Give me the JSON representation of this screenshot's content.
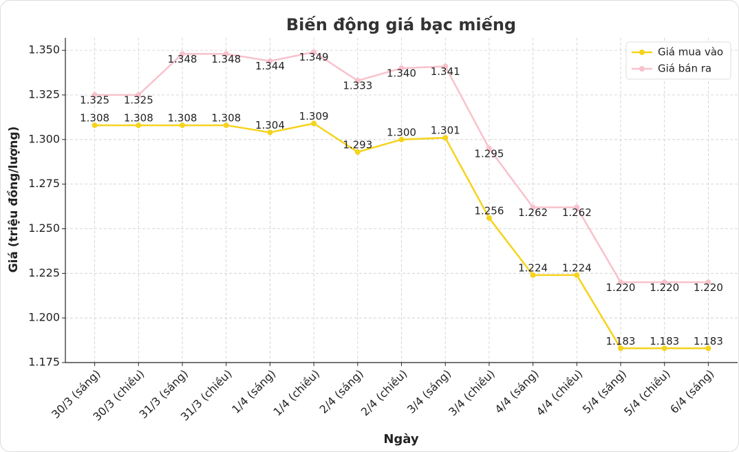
{
  "chart_data": {
    "type": "line",
    "title": "Biến động giá bạc miếng",
    "xlabel": "Ngày",
    "ylabel": "Giá (triệu đồng/lượng)",
    "categories": [
      "30/3 (sáng)",
      "30/3 (chiều)",
      "31/3 (sáng)",
      "31/3 (chiều)",
      "1/4 (sáng)",
      "1/4 (chiều)",
      "2/4 (sáng)",
      "2/4 (chiều)",
      "3/4 (sáng)",
      "3/4 (chiều)",
      "4/4 (sáng)",
      "4/4 (chiều)",
      "5/4 (sáng)",
      "5/4 (chiều)",
      "6/4 (sáng)"
    ],
    "series": [
      {
        "name": "Giá mua vào",
        "color": "#f5d31c",
        "values": [
          1.308,
          1.308,
          1.308,
          1.308,
          1.304,
          1.309,
          1.293,
          1.3,
          1.301,
          1.256,
          1.224,
          1.224,
          1.183,
          1.183,
          1.183
        ],
        "value_labels": [
          "1.308",
          "1.308",
          "1.308",
          "1.308",
          "1.304",
          "1.309",
          "1.293",
          "1.300",
          "1.301",
          "1.256",
          "1.224",
          "1.224",
          "1.183",
          "1.183",
          "1.183"
        ]
      },
      {
        "name": "Giá bán ra",
        "color": "#f8c1cb",
        "values": [
          1.325,
          1.325,
          1.348,
          1.348,
          1.344,
          1.349,
          1.333,
          1.34,
          1.341,
          1.295,
          1.262,
          1.262,
          1.22,
          1.22,
          1.22
        ],
        "value_labels": [
          "1.325",
          "1.325",
          "1.348",
          "1.348",
          "1.344",
          "1.349",
          "1.333",
          "1.340",
          "1.341",
          "1.295",
          "1.262",
          "1.262",
          "1.220",
          "1.220",
          "1.220"
        ]
      }
    ],
    "ylim": [
      1.175,
      1.357
    ],
    "yticks": [
      {
        "value": 1.175,
        "label": "1.175"
      },
      {
        "value": 1.2,
        "label": "1.200"
      },
      {
        "value": 1.225,
        "label": "1.225"
      },
      {
        "value": 1.25,
        "label": "1.250"
      },
      {
        "value": 1.275,
        "label": "1.275"
      },
      {
        "value": 1.3,
        "label": "1.300"
      },
      {
        "value": 1.325,
        "label": "1.325"
      },
      {
        "value": 1.35,
        "label": "1.350"
      }
    ],
    "grid": true,
    "legend": "upper right"
  }
}
